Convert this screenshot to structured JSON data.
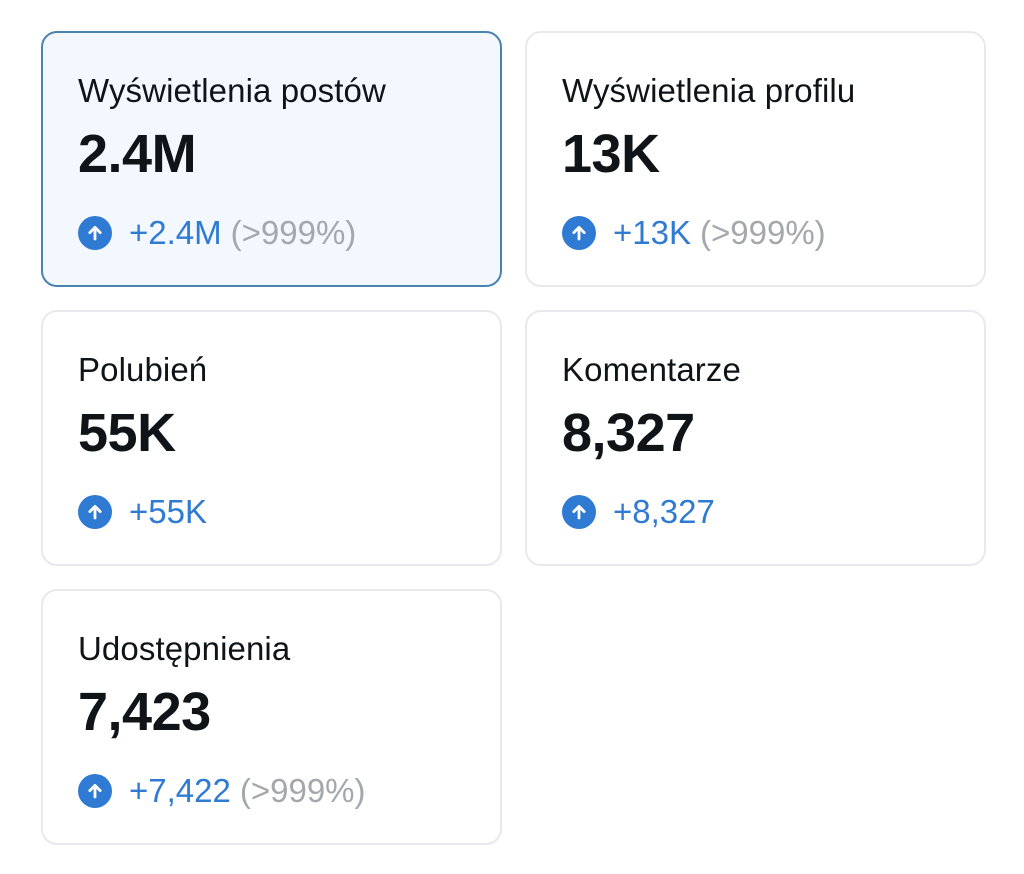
{
  "colors": {
    "accent": "#2f7ad3",
    "muted": "#a4a8ad",
    "selected_background": "#f3f8fe",
    "selected_border": "#4a83b2",
    "card_border": "#e7e9ec"
  },
  "icons": {
    "trend": "arrow-up-icon"
  },
  "cards": [
    {
      "title": "Wyświetlenia postów",
      "value": "2.4M",
      "delta": "+2.4M",
      "percent": "(>999%)",
      "selected": true
    },
    {
      "title": "Wyświetlenia profilu",
      "value": "13K",
      "delta": "+13K",
      "percent": "(>999%)",
      "selected": false
    },
    {
      "title": "Polubień",
      "value": "55K",
      "delta": "+55K",
      "percent": "",
      "selected": false
    },
    {
      "title": "Komentarze",
      "value": "8,327",
      "delta": "+8,327",
      "percent": "",
      "selected": false
    },
    {
      "title": "Udostępnienia",
      "value": "7,423",
      "delta": "+7,422",
      "percent": "(>999%)",
      "selected": false
    }
  ]
}
